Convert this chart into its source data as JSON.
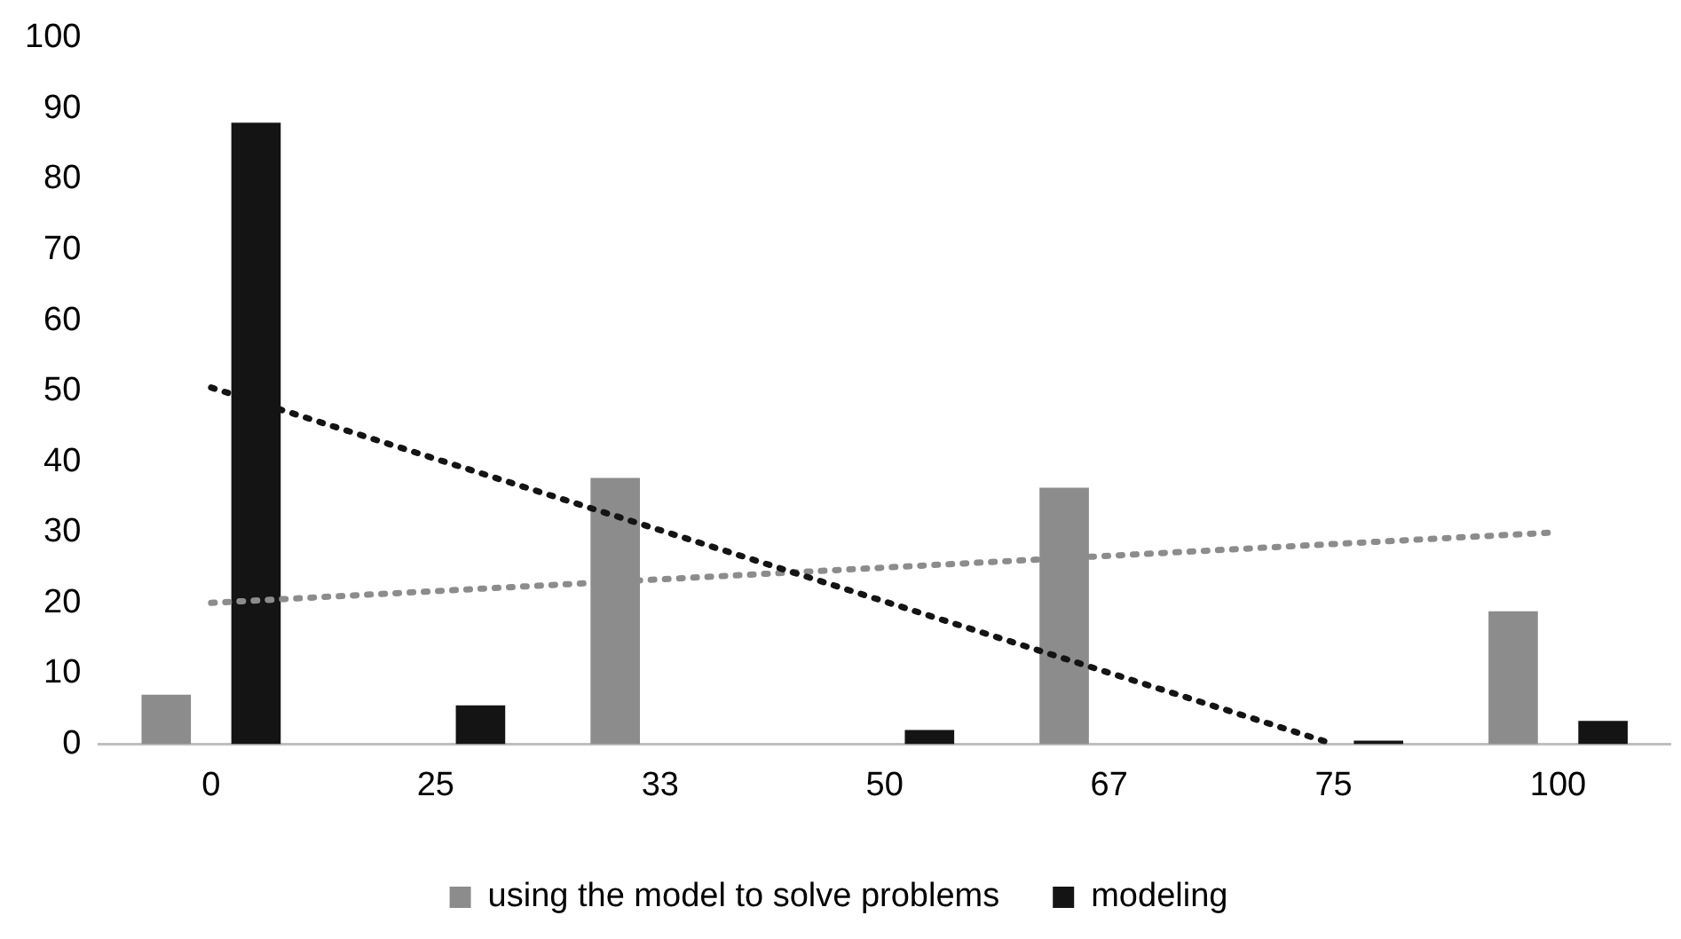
{
  "chart_data": {
    "type": "bar",
    "categories": [
      "0",
      "25",
      "33",
      "50",
      "67",
      "75",
      "100"
    ],
    "series": [
      {
        "name": "using the model to solve problems",
        "color": "#8c8c8c",
        "values": [
          7,
          null,
          37.7,
          null,
          36.3,
          null,
          18.8
        ]
      },
      {
        "name": "modeling",
        "color": "#141414",
        "values": [
          88,
          5.5,
          null,
          2,
          null,
          0.5,
          3.3
        ]
      },
      {
        "type": "line",
        "color": "#141414",
        "x": [
          "0",
          "75"
        ],
        "values": [
          50.5,
          0
        ],
        "line_style": "dotted",
        "marker": "none"
      },
      {
        "type": "line",
        "color": "#8c8c8c",
        "x": [
          "0",
          "100"
        ],
        "values": [
          20,
          30
        ],
        "line_style": "dotted",
        "marker": "none"
      }
    ],
    "ylim": [
      0,
      100
    ],
    "yticks": [
      0,
      10,
      20,
      30,
      40,
      50,
      60,
      70,
      80,
      90,
      100
    ],
    "grid": false,
    "legend": "bottom"
  }
}
